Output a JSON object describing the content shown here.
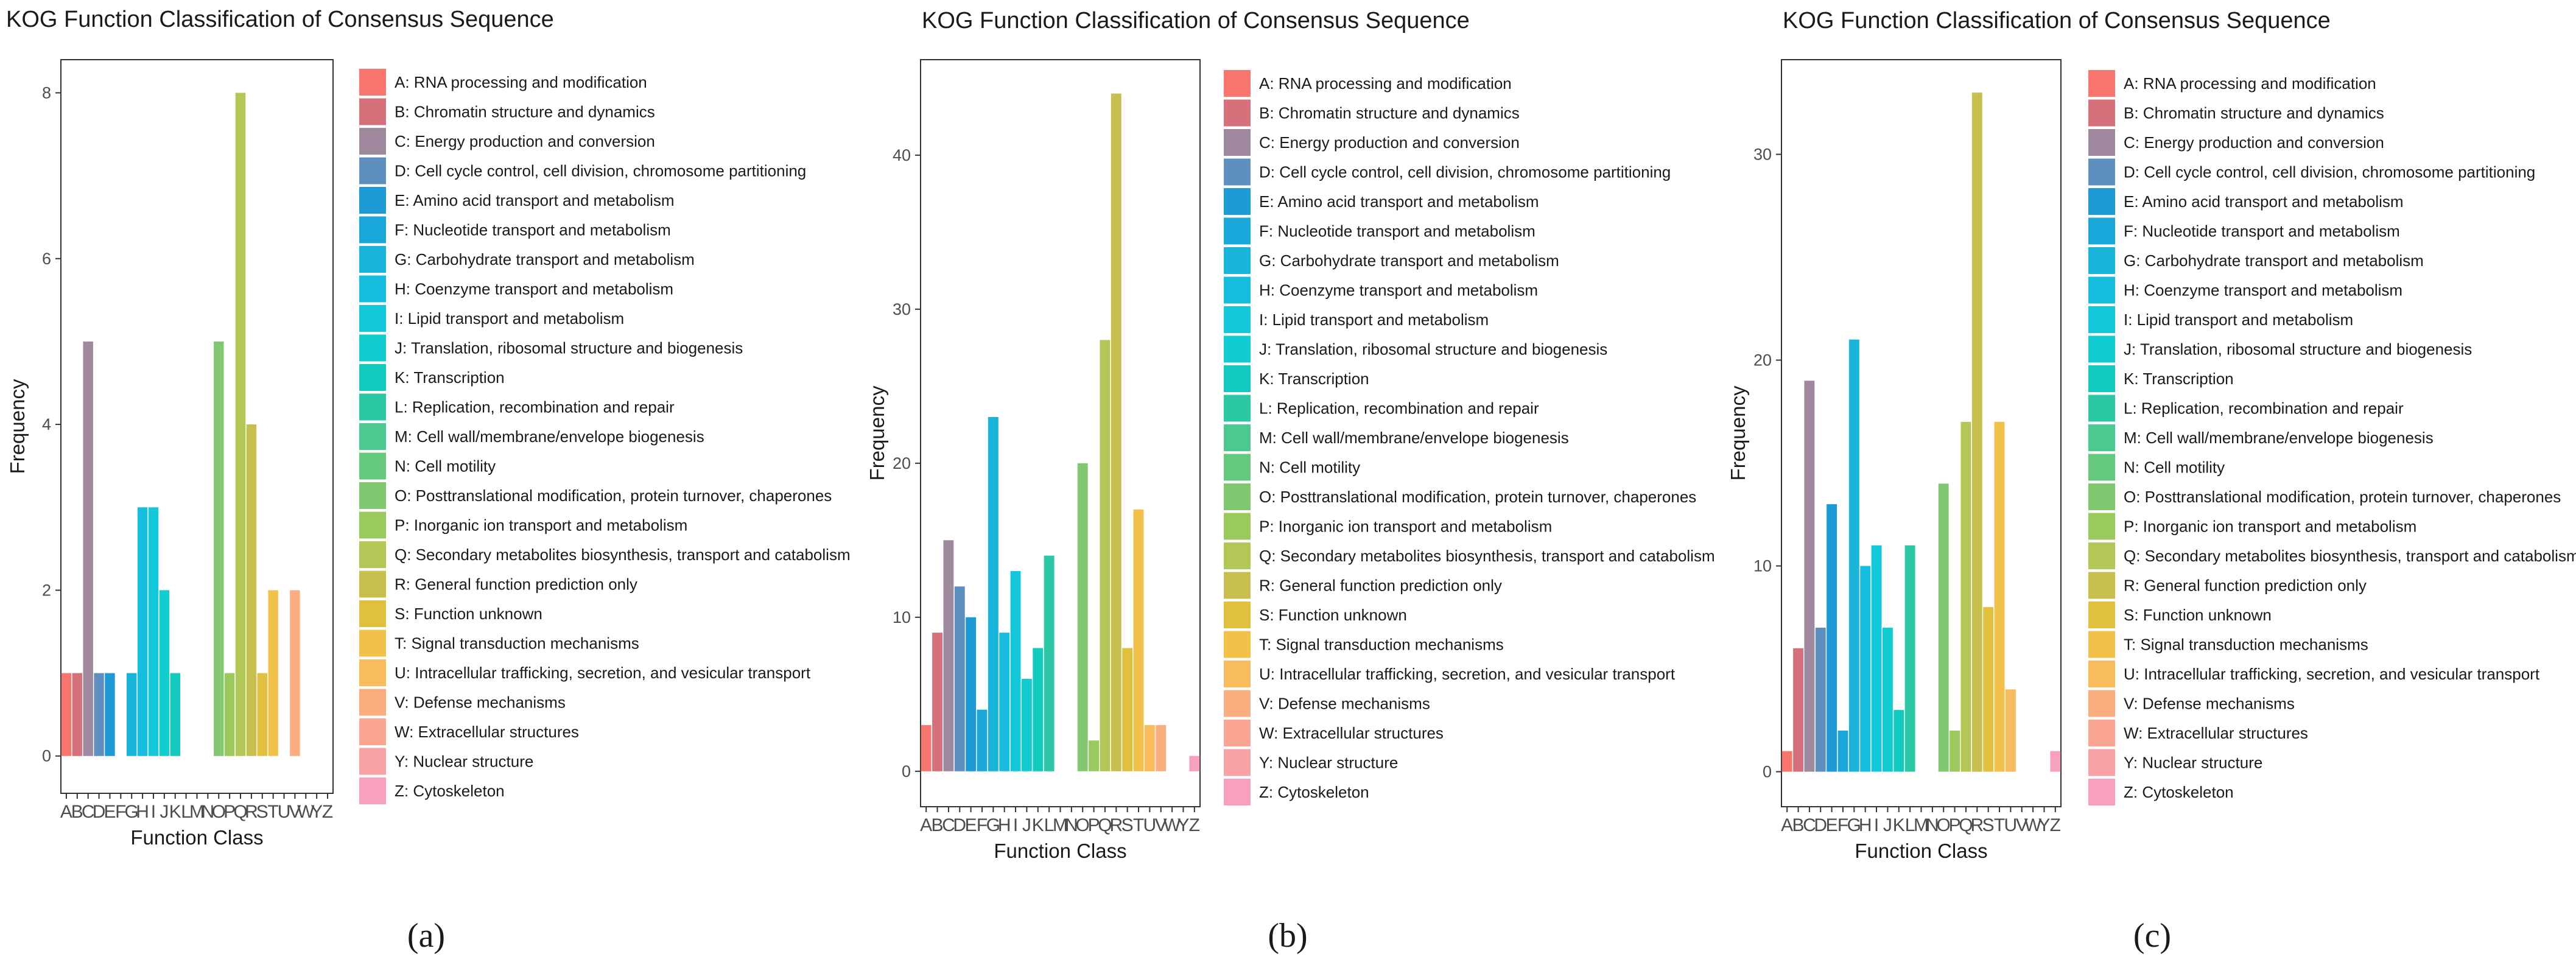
{
  "categories": [
    "A",
    "B",
    "C",
    "D",
    "E",
    "F",
    "G",
    "H",
    "I",
    "J",
    "K",
    "L",
    "M",
    "N",
    "O",
    "P",
    "Q",
    "R",
    "S",
    "T",
    "U",
    "V",
    "W",
    "Y",
    "Z"
  ],
  "legend_labels": [
    "A: RNA processing and modification",
    "B: Chromatin structure and dynamics",
    "C: Energy production and conversion",
    "D: Cell cycle control, cell division, chromosome partitioning",
    "E: Amino acid transport and metabolism",
    "F: Nucleotide transport and metabolism",
    "G: Carbohydrate transport and metabolism",
    "H: Coenzyme transport and metabolism",
    "I: Lipid transport and metabolism",
    "J: Translation, ribosomal structure and biogenesis",
    "K: Transcription",
    "L: Replication, recombination and repair",
    "M: Cell wall/membrane/envelope biogenesis",
    "N: Cell motility",
    "O: Posttranslational modification, protein turnover, chaperones",
    "P: Inorganic ion transport and metabolism",
    "Q: Secondary metabolites biosynthesis, transport and catabolism",
    "R: General function prediction only",
    "S: Function unknown",
    "T: Signal transduction mechanisms",
    "U: Intracellular trafficking, secretion, and vesicular transport",
    "V: Defense mechanisms",
    "W: Extracellular structures",
    "Y: Nuclear structure",
    "Z: Cytoskeleton"
  ],
  "colors": [
    "#F8766D",
    "#D6707B",
    "#A0889E",
    "#5E8FBE",
    "#1E9AD6",
    "#1AA8DB",
    "#19B4DA",
    "#16BDDE",
    "#14C8DB",
    "#12CDD0",
    "#12CBBE",
    "#2CC7A5",
    "#4BC990",
    "#64C87D",
    "#82C870",
    "#9ACA5E",
    "#B3C756",
    "#C7BF4E",
    "#E1C03E",
    "#F2C14A",
    "#F9BC5C",
    "#FAAE80",
    "#FBA593",
    "#F9A2A5",
    "#F8A1BF"
  ],
  "chart_data": [
    {
      "type": "bar",
      "panel_label": "(a)",
      "title": "KOG Function Classification of Consensus Sequence",
      "xlabel": "Function Class",
      "ylabel": "Frequency",
      "ylim": [
        -0.45,
        8.4
      ],
      "yticks": [
        0,
        2,
        4,
        6,
        8
      ],
      "legend": "right",
      "values": [
        1,
        1,
        5,
        1,
        1,
        0,
        1,
        3,
        3,
        2,
        1,
        0,
        0,
        0,
        5,
        1,
        8,
        4,
        1,
        2,
        0,
        2,
        0,
        0,
        0
      ]
    },
    {
      "type": "bar",
      "panel_label": "(b)",
      "title": "KOG Function Classification of Consensus Sequence",
      "xlabel": "Function Class",
      "ylabel": "Frequency",
      "ylim": [
        -2.3,
        46.2
      ],
      "yticks": [
        0,
        10,
        20,
        30,
        40
      ],
      "legend": "right",
      "values": [
        3,
        9,
        15,
        12,
        10,
        4,
        23,
        9,
        13,
        6,
        8,
        14,
        0,
        0,
        20,
        2,
        28,
        44,
        8,
        17,
        3,
        3,
        0,
        0,
        1
      ]
    },
    {
      "type": "bar",
      "panel_label": "(c)",
      "title": "KOG Function Classification of Consensus Sequence",
      "xlabel": "Function Class",
      "ylabel": "Frequency",
      "ylim": [
        -1.7,
        34.6
      ],
      "yticks": [
        0,
        10,
        20,
        30
      ],
      "legend": "right",
      "values": [
        1,
        6,
        19,
        7,
        13,
        2,
        21,
        10,
        11,
        7,
        3,
        11,
        0,
        0,
        14,
        2,
        17,
        33,
        8,
        17,
        4,
        0,
        0,
        0,
        1
      ]
    }
  ]
}
